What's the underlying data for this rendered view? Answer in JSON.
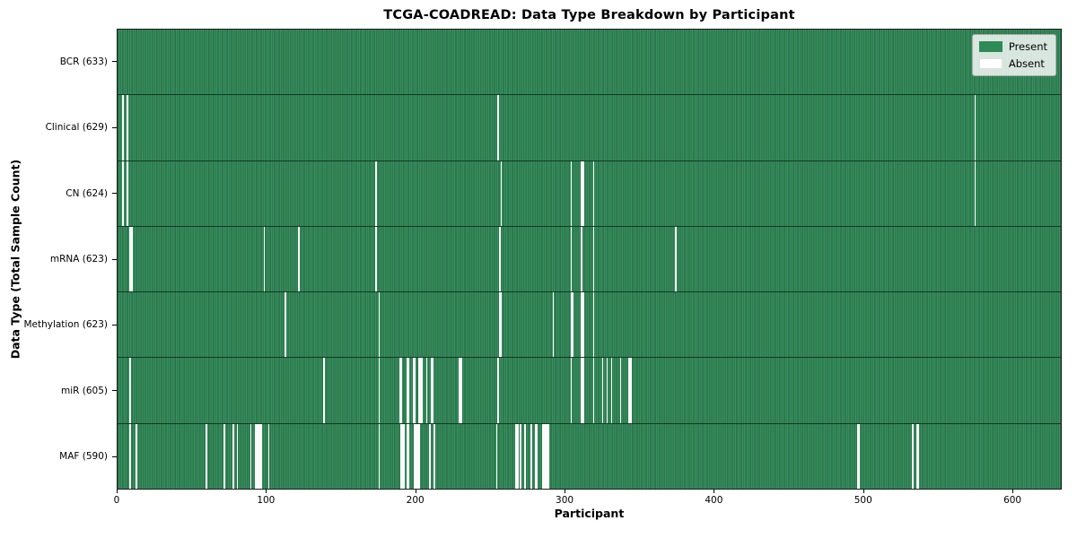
{
  "chart_data": {
    "type": "heatmap",
    "title": "TCGA-COADREAD: Data Type Breakdown by Participant",
    "xlabel": "Participant",
    "ylabel": "Data Type (Total Sample Count)",
    "x_range": [
      0,
      633
    ],
    "n_participants": 633,
    "x_ticks": [
      0,
      100,
      200,
      300,
      400,
      500,
      600
    ],
    "grid": false,
    "legend_position": "upper right",
    "legend": [
      {
        "label": "Present",
        "color": "#2e8b57"
      },
      {
        "label": "Absent",
        "color": "#ffffff"
      }
    ],
    "colors": {
      "present": "#2e8b57",
      "present_edge": "#133c26",
      "absent": "#fbfbfb"
    },
    "rows": [
      {
        "label": "BCR (633)",
        "data_type": "BCR",
        "total_samples": 633,
        "absent_participants": []
      },
      {
        "label": "Clinical (629)",
        "data_type": "Clinical",
        "total_samples": 629,
        "absent_participants": [
          3,
          6,
          255,
          575
        ]
      },
      {
        "label": "CN (624)",
        "data_type": "CN",
        "total_samples": 624,
        "absent_participants": [
          3,
          6,
          173,
          257,
          304,
          311,
          312,
          319,
          575
        ]
      },
      {
        "label": "mRNA (623)",
        "data_type": "mRNA",
        "total_samples": 623,
        "absent_participants": [
          8,
          9,
          98,
          121,
          173,
          256,
          304,
          311,
          319,
          374
        ]
      },
      {
        "label": "Methylation (623)",
        "data_type": "Methylation",
        "total_samples": 623,
        "absent_participants": [
          112,
          175,
          256,
          257,
          292,
          304,
          305,
          311,
          312,
          319
        ]
      },
      {
        "label": "miR (605)",
        "data_type": "miR",
        "total_samples": 605,
        "absent_participants": [
          8,
          138,
          175,
          189,
          190,
          194,
          195,
          198,
          199,
          202,
          203,
          204,
          207,
          210,
          211,
          229,
          230,
          255,
          304,
          311,
          312,
          319,
          325,
          328,
          331,
          337,
          343,
          344
        ]
      },
      {
        "label": "MAF (590)",
        "data_type": "MAF",
        "total_samples": 590,
        "absent_participants": [
          8,
          12,
          59,
          71,
          77,
          80,
          89,
          92,
          93,
          94,
          95,
          96,
          101,
          175,
          190,
          191,
          192,
          194,
          195,
          199,
          200,
          201,
          202,
          209,
          212,
          254,
          267,
          268,
          270,
          273,
          277,
          280,
          281,
          285,
          286,
          287,
          288,
          289,
          496,
          497,
          533,
          536,
          537
        ]
      }
    ]
  }
}
